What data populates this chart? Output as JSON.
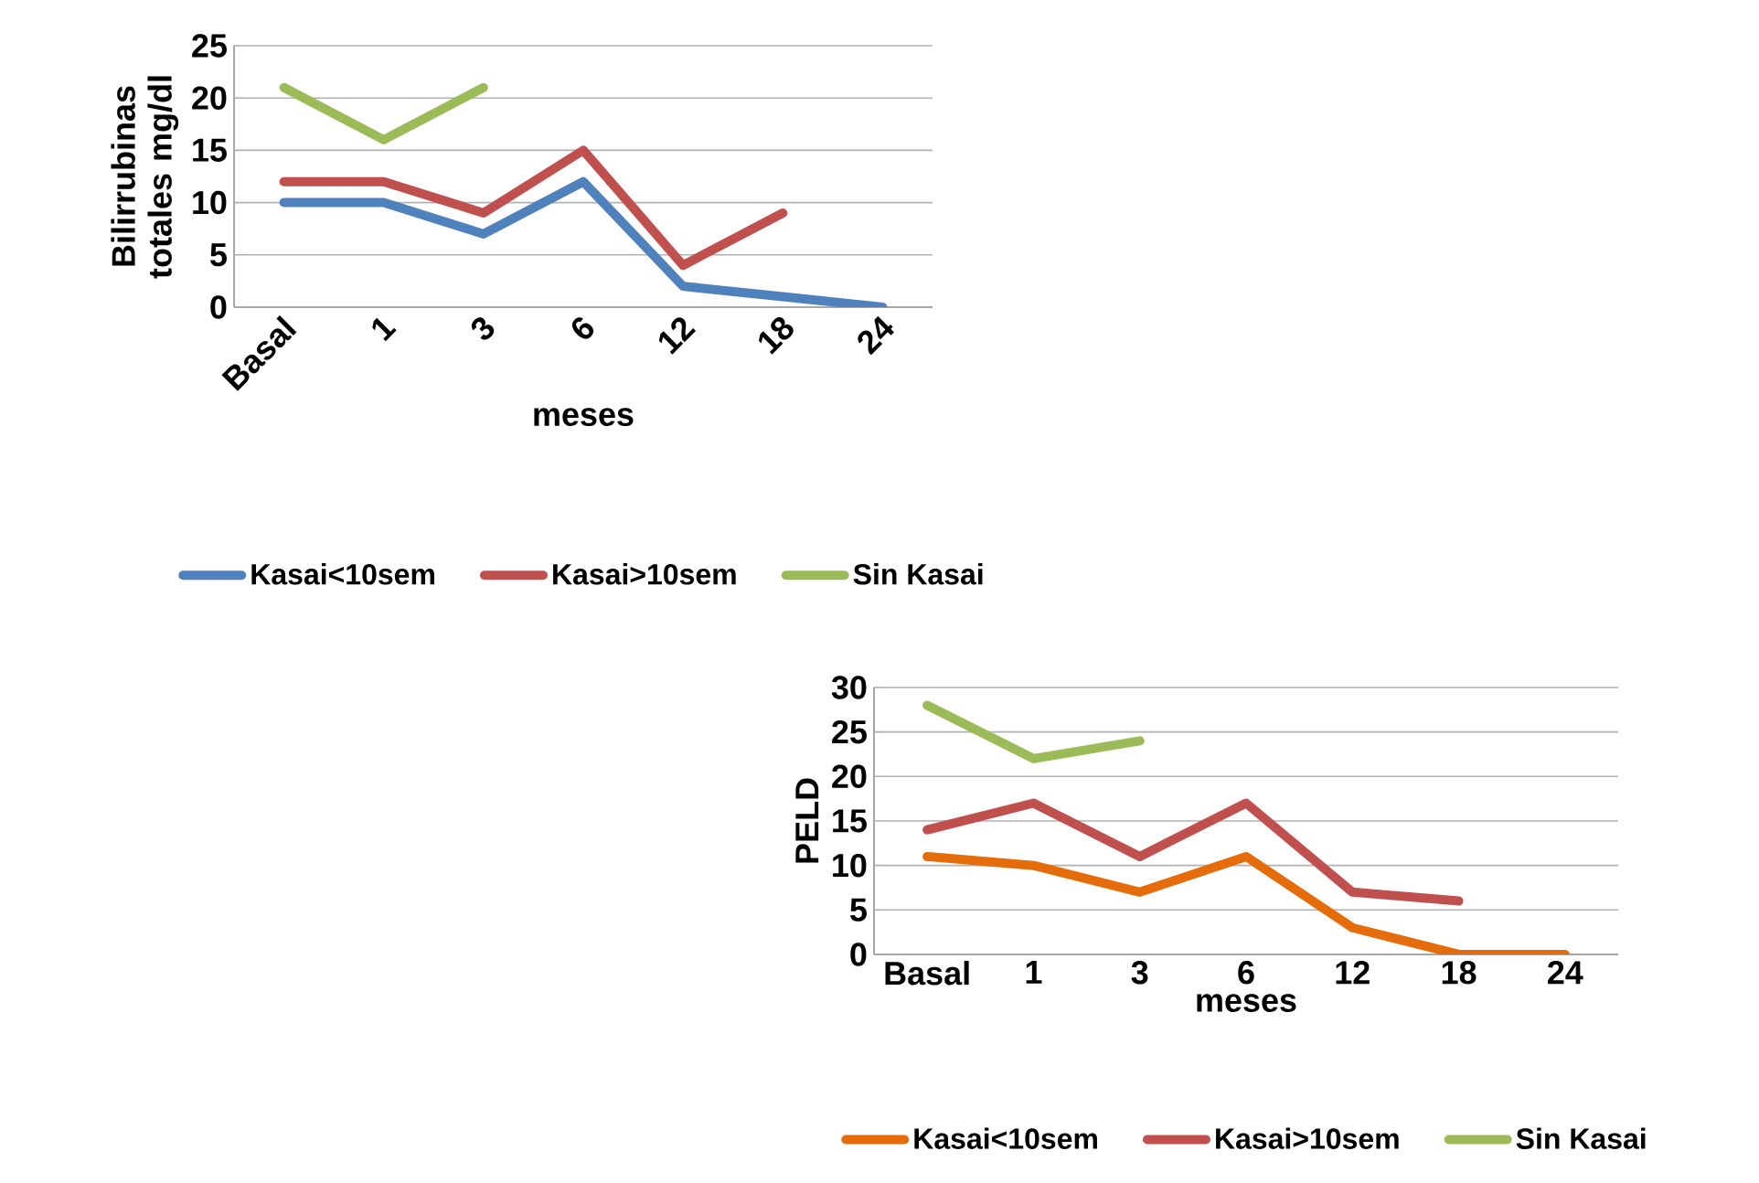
{
  "chart_data": [
    {
      "type": "line",
      "xlabel": "meses",
      "ylabel": "Bilirrubinas totales mg/dl",
      "categories": [
        "Basal",
        "1",
        "3",
        "6",
        "12",
        "18",
        "24"
      ],
      "ylim": [
        0,
        25
      ],
      "yticks": [
        0,
        5,
        10,
        15,
        20,
        25
      ],
      "grid": "y",
      "legend": "bottom",
      "marker": "none",
      "series": [
        {
          "name": "Kasai<10sem",
          "color": "#4f81bd",
          "values": [
            10,
            10,
            7,
            12,
            2,
            1,
            0
          ]
        },
        {
          "name": "Kasai>10sem",
          "color": "#c0504d",
          "values": [
            12,
            12,
            9,
            15,
            4,
            9,
            null
          ]
        },
        {
          "name": "Sin Kasai",
          "color": "#9bbb59",
          "values": [
            21,
            16,
            21,
            null,
            null,
            null,
            null
          ]
        }
      ]
    },
    {
      "type": "line",
      "xlabel": "meses",
      "ylabel": "PELD",
      "categories": [
        "Basal",
        "1",
        "3",
        "6",
        "12",
        "18",
        "24"
      ],
      "ylim": [
        0,
        30
      ],
      "yticks": [
        0,
        5,
        10,
        15,
        20,
        25,
        30
      ],
      "grid": "y",
      "legend": "bottom",
      "marker": "none",
      "series": [
        {
          "name": "Kasai<10sem",
          "color": "#e46c0a",
          "values": [
            11,
            10,
            7,
            11,
            3,
            0,
            0
          ]
        },
        {
          "name": "Kasai>10sem",
          "color": "#c0504d",
          "values": [
            14,
            17,
            11,
            17,
            7,
            6,
            null
          ]
        },
        {
          "name": "Sin Kasai",
          "color": "#9bbb59",
          "values": [
            28,
            22,
            24,
            null,
            null,
            null,
            null
          ]
        }
      ]
    }
  ]
}
